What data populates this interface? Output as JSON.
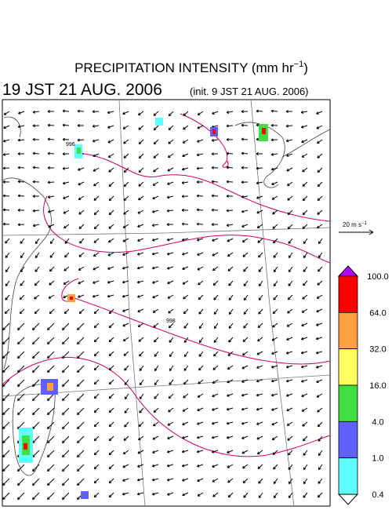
{
  "title": {
    "text": "PRECIPITATION INTENSITY (mm hr",
    "superscript": "−1",
    "close": ")"
  },
  "valid_time": "19 JST 21 AUG. 2006",
  "init_time": "(init. 9 JST 21 AUG. 2006)",
  "vector_legend": {
    "text": "20 m s",
    "superscript": "−1"
  },
  "contour_labels": [
    "996",
    "998"
  ],
  "colorbar": {
    "levels": [
      {
        "value": 100,
        "label": "100.0"
      },
      {
        "value": 64,
        "label": "64.0"
      },
      {
        "value": 32,
        "label": "32.0"
      },
      {
        "value": 16,
        "label": "16.0"
      },
      {
        "value": 4,
        "label": "4.0"
      },
      {
        "value": 1,
        "label": "1.0"
      },
      {
        "value": 0.4,
        "label": "0.4"
      }
    ],
    "colors": [
      "#b400ff",
      "#ff0000",
      "#ffa040",
      "#ffff60",
      "#40e040",
      "#6060ff",
      "#60ffff",
      "#ffffff"
    ]
  }
}
